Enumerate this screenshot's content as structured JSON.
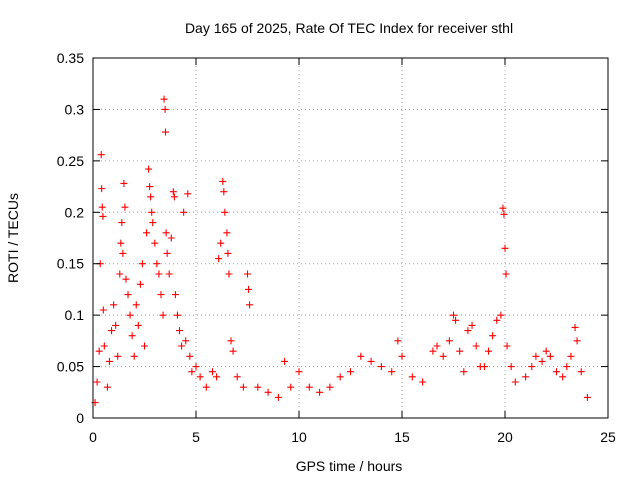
{
  "chart_data": {
    "type": "scatter",
    "title": "Day 165 of 2025, Rate Of TEC Index for receiver sthl",
    "xlabel": "GPS time / hours",
    "ylabel": "ROTI / TECUs",
    "xlim": [
      0,
      25
    ],
    "ylim": [
      0,
      0.35
    ],
    "xticks": [
      0,
      5,
      10,
      15,
      20,
      25
    ],
    "yticks": [
      0,
      0.05,
      0.1,
      0.15,
      0.2,
      0.25,
      0.3,
      0.35
    ],
    "xtick_labels": [
      "0",
      "5",
      "10",
      "15",
      "20",
      "25"
    ],
    "ytick_labels": [
      "0",
      "0.05",
      "0.1",
      "0.15",
      "0.2",
      "0.25",
      "0.3",
      "0.35"
    ],
    "grid": true,
    "marker": "plus",
    "color": "#ff0000",
    "series": [
      {
        "points": [
          [
            0.1,
            0.015
          ],
          [
            0.2,
            0.035
          ],
          [
            0.3,
            0.065
          ],
          [
            0.35,
            0.15
          ],
          [
            0.4,
            0.256
          ],
          [
            0.42,
            0.223
          ],
          [
            0.45,
            0.205
          ],
          [
            0.48,
            0.196
          ],
          [
            0.5,
            0.105
          ],
          [
            0.55,
            0.07
          ],
          [
            0.7,
            0.03
          ],
          [
            0.8,
            0.055
          ],
          [
            0.9,
            0.085
          ],
          [
            1.0,
            0.11
          ],
          [
            1.1,
            0.09
          ],
          [
            1.2,
            0.06
          ],
          [
            1.3,
            0.14
          ],
          [
            1.35,
            0.17
          ],
          [
            1.4,
            0.19
          ],
          [
            1.45,
            0.16
          ],
          [
            1.5,
            0.228
          ],
          [
            1.55,
            0.205
          ],
          [
            1.6,
            0.135
          ],
          [
            1.7,
            0.12
          ],
          [
            1.8,
            0.1
          ],
          [
            1.9,
            0.08
          ],
          [
            2.0,
            0.06
          ],
          [
            2.1,
            0.11
          ],
          [
            2.2,
            0.09
          ],
          [
            2.3,
            0.13
          ],
          [
            2.4,
            0.15
          ],
          [
            2.5,
            0.07
          ],
          [
            2.6,
            0.18
          ],
          [
            2.7,
            0.242
          ],
          [
            2.75,
            0.225
          ],
          [
            2.8,
            0.215
          ],
          [
            2.85,
            0.2
          ],
          [
            2.9,
            0.19
          ],
          [
            3.0,
            0.17
          ],
          [
            3.1,
            0.15
          ],
          [
            3.2,
            0.14
          ],
          [
            3.3,
            0.12
          ],
          [
            3.4,
            0.1
          ],
          [
            3.45,
            0.31
          ],
          [
            3.5,
            0.3
          ],
          [
            3.52,
            0.278
          ],
          [
            3.55,
            0.18
          ],
          [
            3.6,
            0.16
          ],
          [
            3.7,
            0.14
          ],
          [
            3.8,
            0.175
          ],
          [
            3.9,
            0.22
          ],
          [
            3.95,
            0.215
          ],
          [
            4.0,
            0.12
          ],
          [
            4.1,
            0.1
          ],
          [
            4.2,
            0.085
          ],
          [
            4.3,
            0.07
          ],
          [
            4.4,
            0.2
          ],
          [
            4.5,
            0.075
          ],
          [
            4.6,
            0.218
          ],
          [
            4.7,
            0.06
          ],
          [
            4.8,
            0.045
          ],
          [
            5.0,
            0.05
          ],
          [
            5.2,
            0.04
          ],
          [
            5.5,
            0.03
          ],
          [
            5.8,
            0.045
          ],
          [
            6.0,
            0.04
          ],
          [
            6.1,
            0.155
          ],
          [
            6.2,
            0.17
          ],
          [
            6.3,
            0.23
          ],
          [
            6.35,
            0.22
          ],
          [
            6.4,
            0.2
          ],
          [
            6.5,
            0.18
          ],
          [
            6.55,
            0.16
          ],
          [
            6.6,
            0.14
          ],
          [
            6.7,
            0.075
          ],
          [
            6.8,
            0.065
          ],
          [
            7.0,
            0.04
          ],
          [
            7.3,
            0.03
          ],
          [
            7.5,
            0.14
          ],
          [
            7.55,
            0.125
          ],
          [
            7.6,
            0.11
          ],
          [
            8.0,
            0.03
          ],
          [
            8.5,
            0.025
          ],
          [
            9.0,
            0.02
          ],
          [
            9.3,
            0.055
          ],
          [
            9.6,
            0.03
          ],
          [
            10.0,
            0.045
          ],
          [
            10.5,
            0.03
          ],
          [
            11.0,
            0.025
          ],
          [
            11.5,
            0.03
          ],
          [
            12.0,
            0.04
          ],
          [
            12.5,
            0.045
          ],
          [
            13.0,
            0.06
          ],
          [
            13.5,
            0.055
          ],
          [
            14.0,
            0.05
          ],
          [
            14.5,
            0.045
          ],
          [
            14.8,
            0.075
          ],
          [
            15.0,
            0.06
          ],
          [
            15.5,
            0.04
          ],
          [
            16.0,
            0.035
          ],
          [
            16.5,
            0.065
          ],
          [
            16.7,
            0.07
          ],
          [
            17.0,
            0.06
          ],
          [
            17.3,
            0.075
          ],
          [
            17.5,
            0.1
          ],
          [
            17.6,
            0.095
          ],
          [
            17.8,
            0.065
          ],
          [
            18.0,
            0.045
          ],
          [
            18.2,
            0.085
          ],
          [
            18.4,
            0.09
          ],
          [
            18.6,
            0.07
          ],
          [
            18.8,
            0.05
          ],
          [
            19.0,
            0.05
          ],
          [
            19.2,
            0.065
          ],
          [
            19.4,
            0.08
          ],
          [
            19.6,
            0.095
          ],
          [
            19.8,
            0.1
          ],
          [
            19.9,
            0.204
          ],
          [
            19.95,
            0.198
          ],
          [
            20.0,
            0.165
          ],
          [
            20.05,
            0.14
          ],
          [
            20.1,
            0.07
          ],
          [
            20.3,
            0.05
          ],
          [
            20.5,
            0.035
          ],
          [
            21.0,
            0.04
          ],
          [
            21.3,
            0.05
          ],
          [
            21.5,
            0.06
          ],
          [
            21.8,
            0.055
          ],
          [
            22.0,
            0.065
          ],
          [
            22.2,
            0.06
          ],
          [
            22.5,
            0.045
          ],
          [
            22.8,
            0.04
          ],
          [
            23.0,
            0.05
          ],
          [
            23.2,
            0.06
          ],
          [
            23.4,
            0.088
          ],
          [
            23.5,
            0.075
          ],
          [
            23.7,
            0.045
          ],
          [
            24.0,
            0.02
          ]
        ]
      }
    ]
  }
}
